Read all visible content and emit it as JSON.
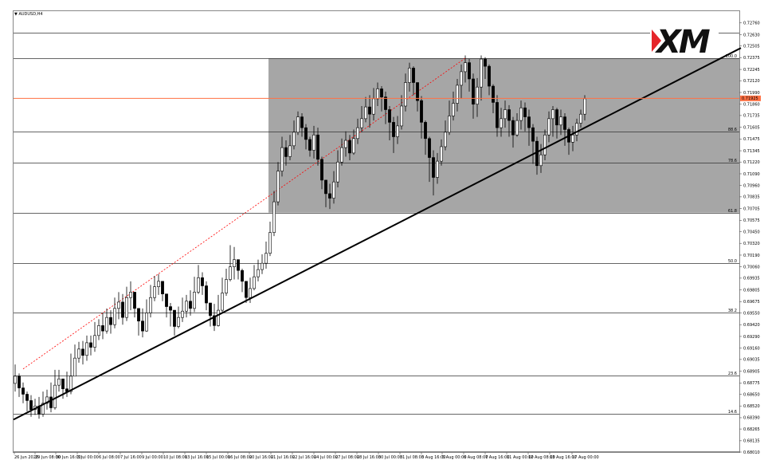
{
  "symbol_title": "AUDUSD,H4",
  "logo_text": "XM",
  "colors": {
    "zone": "#a6a6a6",
    "current_price_line": "#ff7043",
    "candle_bull": "#ffffff",
    "candle_bear": "#000000",
    "trendline": "#000000",
    "dotted_line": "#ff0000",
    "logo_red": "#e5252a"
  },
  "chart_data": {
    "type": "candlestick",
    "title": "AUDUSD,H4",
    "ylim": [
      0.6801,
      0.7289
    ],
    "y_ticks": [
      "0.72760",
      "0.72630",
      "0.72505",
      "0.72375",
      "0.72245",
      "0.72120",
      "0.71990",
      "0.71860",
      "0.71735",
      "0.71605",
      "0.71475",
      "0.71345",
      "0.71220",
      "0.71090",
      "0.70960",
      "0.70835",
      "0.70705",
      "0.70575",
      "0.70450",
      "0.70320",
      "0.70190",
      "0.70060",
      "0.69935",
      "0.69805",
      "0.69675",
      "0.69550",
      "0.69420",
      "0.69290",
      "0.69160",
      "0.69035",
      "0.68905",
      "0.68775",
      "0.68650",
      "0.68520",
      "0.68390",
      "0.68265",
      "0.68135",
      "0.68010"
    ],
    "x_ticks": [
      "26 Jun 2020",
      "29 Jun 08:00",
      "30 Jun 16:00",
      "3 Jul 00:00",
      "6 Jul 08:00",
      "7 Jul 16:00",
      "9 Jul 00:00",
      "10 Jul 08:00",
      "13 Jul 16:00",
      "15 Jul 00:00",
      "16 Jul 08:00",
      "20 Jul 16:00",
      "21 Jul 16:00",
      "22 Jul 16:00",
      "24 Jul 00:00",
      "27 Jul 08:00",
      "28 Jul 16:00",
      "30 Jul 00:00",
      "31 Jul 08:00",
      "3 Aug 16:00",
      "5 Aug 00:00",
      "6 Aug 08:00",
      "7 Aug 16:00",
      "11 Aug 00:00",
      "12 Aug 08:00",
      "13 Aug 16:00",
      "17 Aug 00:00"
    ],
    "current_price": "0.71925",
    "current_price_value": 0.71925,
    "fibonacci_levels": [
      {
        "label": "100.0",
        "price": 0.7237
      },
      {
        "label": "88.6",
        "price": 0.7156
      },
      {
        "label": "78.6",
        "price": 0.7121
      },
      {
        "label": "61.8",
        "price": 0.7066
      },
      {
        "label": "50.0",
        "price": 0.701
      },
      {
        "label": "38.2",
        "price": 0.6955
      },
      {
        "label": "23.6",
        "price": 0.6886
      },
      {
        "label": "14.6",
        "price": 0.6843
      }
    ],
    "extra_levels": [
      0.7265
    ],
    "zone": {
      "price_top": 0.7237,
      "price_bottom": 0.7066,
      "start_index": 64
    },
    "trendline": {
      "from": {
        "index": 0,
        "price": 0.6837
      },
      "to": {
        "index": 163,
        "price": 0.7205
      }
    },
    "dotted_line": {
      "from": {
        "index": 2,
        "price": 0.6893
      },
      "to": {
        "index": 113,
        "price": 0.7237
      }
    },
    "closes": [
      0.6885,
      0.6872,
      0.6865,
      0.6858,
      0.6848,
      0.6852,
      0.6843,
      0.6855,
      0.6862,
      0.685,
      0.6875,
      0.6882,
      0.6871,
      0.6868,
      0.6885,
      0.6905,
      0.6915,
      0.6908,
      0.6922,
      0.6917,
      0.693,
      0.6941,
      0.6935,
      0.695,
      0.6942,
      0.696,
      0.6967,
      0.695,
      0.6972,
      0.6978,
      0.696,
      0.6946,
      0.6935,
      0.6955,
      0.6972,
      0.6984,
      0.699,
      0.6976,
      0.6962,
      0.6958,
      0.694,
      0.695,
      0.6957,
      0.6968,
      0.696,
      0.6978,
      0.6994,
      0.6985,
      0.6966,
      0.6952,
      0.6941,
      0.6958,
      0.6977,
      0.6992,
      0.7006,
      0.7014,
      0.7002,
      0.699,
      0.6972,
      0.6982,
      0.6995,
      0.7003,
      0.701,
      0.7021,
      0.7044,
      0.7078,
      0.7112,
      0.7138,
      0.7128,
      0.714,
      0.7155,
      0.7172,
      0.716,
      0.7147,
      0.7135,
      0.7152,
      0.7125,
      0.7102,
      0.7087,
      0.7082,
      0.71,
      0.7122,
      0.7138,
      0.7146,
      0.7132,
      0.7148,
      0.716,
      0.717,
      0.7183,
      0.7175,
      0.7192,
      0.7203,
      0.7194,
      0.718,
      0.7166,
      0.715,
      0.7162,
      0.7184,
      0.721,
      0.7226,
      0.721,
      0.719,
      0.7166,
      0.7148,
      0.7127,
      0.7105,
      0.7123,
      0.7139,
      0.7155,
      0.7173,
      0.7187,
      0.7207,
      0.7222,
      0.7232,
      0.7214,
      0.7186,
      0.7205,
      0.7236,
      0.7228,
      0.7206,
      0.7188,
      0.716,
      0.717,
      0.718,
      0.7168,
      0.7152,
      0.7168,
      0.7182,
      0.7172,
      0.716,
      0.7145,
      0.7118,
      0.713,
      0.7152,
      0.717,
      0.718,
      0.7163,
      0.7172,
      0.7158,
      0.7144,
      0.7152,
      0.7165,
      0.7175,
      0.7192
    ],
    "highs": [
      0.6898,
      0.6888,
      0.6878,
      0.6868,
      0.6864,
      0.686,
      0.6862,
      0.6868,
      0.687,
      0.6878,
      0.6892,
      0.6892,
      0.6882,
      0.689,
      0.691,
      0.692,
      0.6923,
      0.6924,
      0.693,
      0.693,
      0.6945,
      0.6948,
      0.6955,
      0.696,
      0.6958,
      0.6972,
      0.6978,
      0.6976,
      0.6984,
      0.699,
      0.6972,
      0.6955,
      0.696,
      0.697,
      0.6986,
      0.6996,
      0.6998,
      0.699,
      0.6972,
      0.6966,
      0.6955,
      0.6962,
      0.6972,
      0.6975,
      0.698,
      0.6995,
      0.7008,
      0.7,
      0.699,
      0.6966,
      0.6965,
      0.6975,
      0.6994,
      0.7004,
      0.703,
      0.7028,
      0.7014,
      0.7004,
      0.699,
      0.6994,
      0.7008,
      0.7014,
      0.702,
      0.7034,
      0.7056,
      0.709,
      0.7122,
      0.715,
      0.7146,
      0.7152,
      0.7168,
      0.7178,
      0.7176,
      0.7164,
      0.715,
      0.7162,
      0.716,
      0.7128,
      0.7102,
      0.7098,
      0.7112,
      0.7135,
      0.7148,
      0.7156,
      0.7152,
      0.7158,
      0.717,
      0.7184,
      0.7194,
      0.7196,
      0.7204,
      0.721,
      0.7206,
      0.72,
      0.7184,
      0.7172,
      0.7173,
      0.7196,
      0.722,
      0.7232,
      0.7228,
      0.721,
      0.7195,
      0.7168,
      0.715,
      0.7135,
      0.7132,
      0.7147,
      0.7168,
      0.719,
      0.72,
      0.7214,
      0.723,
      0.724,
      0.7236,
      0.722,
      0.7215,
      0.724,
      0.7238,
      0.723,
      0.7208,
      0.7196,
      0.7182,
      0.719,
      0.7185,
      0.7172,
      0.7176,
      0.719,
      0.7188,
      0.718,
      0.7164,
      0.715,
      0.7142,
      0.7158,
      0.7178,
      0.7184,
      0.7182,
      0.718,
      0.7176,
      0.716,
      0.7162,
      0.717,
      0.718,
      0.7196
    ],
    "lows": [
      0.6868,
      0.6862,
      0.6855,
      0.6846,
      0.684,
      0.6842,
      0.6838,
      0.684,
      0.6848,
      0.6845,
      0.6848,
      0.6868,
      0.686,
      0.6862,
      0.6865,
      0.6885,
      0.69,
      0.6898,
      0.6902,
      0.6908,
      0.6912,
      0.6925,
      0.6926,
      0.6932,
      0.6932,
      0.6938,
      0.6948,
      0.6942,
      0.6946,
      0.6958,
      0.695,
      0.693,
      0.6928,
      0.6934,
      0.695,
      0.6968,
      0.6975,
      0.6968,
      0.695,
      0.694,
      0.693,
      0.6938,
      0.6945,
      0.695,
      0.6952,
      0.6956,
      0.6976,
      0.6975,
      0.6958,
      0.694,
      0.6935,
      0.694,
      0.6955,
      0.6974,
      0.699,
      0.6992,
      0.6992,
      0.6978,
      0.6966,
      0.6966,
      0.698,
      0.699,
      0.6998,
      0.7004,
      0.7018,
      0.704,
      0.7074,
      0.7106,
      0.7118,
      0.7124,
      0.7136,
      0.7152,
      0.715,
      0.7136,
      0.7128,
      0.7126,
      0.7118,
      0.7092,
      0.7072,
      0.707,
      0.7076,
      0.7094,
      0.7118,
      0.7128,
      0.7124,
      0.713,
      0.7142,
      0.7155,
      0.7166,
      0.716,
      0.7168,
      0.7184,
      0.7178,
      0.7164,
      0.7146,
      0.7132,
      0.7142,
      0.7158,
      0.7178,
      0.72,
      0.7196,
      0.7178,
      0.7148,
      0.713,
      0.71,
      0.7085,
      0.7098,
      0.7118,
      0.7135,
      0.7152,
      0.7168,
      0.7178,
      0.7192,
      0.721,
      0.72,
      0.717,
      0.7172,
      0.719,
      0.7214,
      0.7196,
      0.7176,
      0.715,
      0.715,
      0.716,
      0.715,
      0.7138,
      0.715,
      0.7158,
      0.7156,
      0.714,
      0.712,
      0.7108,
      0.711,
      0.7124,
      0.7144,
      0.715,
      0.7148,
      0.7152,
      0.714,
      0.713,
      0.7134,
      0.7145,
      0.716,
      0.7168
    ]
  }
}
